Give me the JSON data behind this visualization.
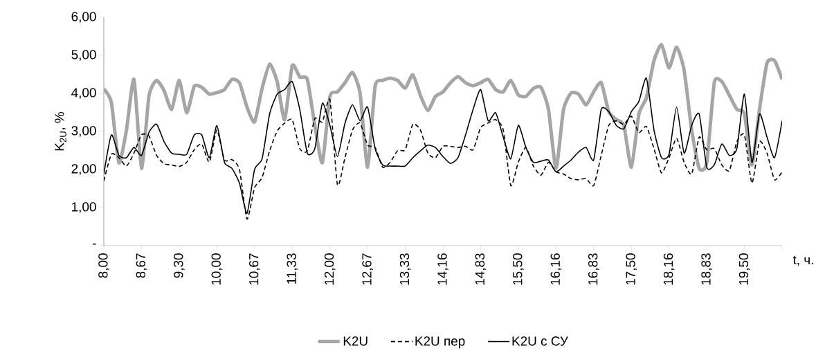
{
  "chart_data": {
    "type": "line",
    "ylabel": "K$_{2U}$, %",
    "xlabel": "t, ч.",
    "categories": [
      "8,00",
      null,
      null,
      null,
      null,
      "8,67",
      null,
      null,
      null,
      null,
      "9,30",
      null,
      null,
      null,
      null,
      "10,00",
      null,
      null,
      null,
      null,
      "10,67",
      null,
      null,
      null,
      null,
      "11,33",
      null,
      null,
      null,
      null,
      "12,00",
      null,
      null,
      null,
      null,
      "12,67",
      null,
      null,
      null,
      null,
      "13,33",
      null,
      null,
      null,
      null,
      "14,16",
      null,
      null,
      null,
      null,
      "14,83",
      null,
      null,
      null,
      null,
      "15,50",
      null,
      null,
      null,
      null,
      "16,16",
      null,
      null,
      null,
      null,
      "16,83",
      null,
      null,
      null,
      null,
      "17,50",
      null,
      null,
      null,
      null,
      "18,16",
      null,
      null,
      null,
      null,
      "18,83",
      null,
      null,
      null,
      null,
      "19,50",
      null,
      null,
      null,
      null,
      null
    ],
    "ylim": [
      0,
      6
    ],
    "yticks": [
      {
        "value": 0,
        "label": "-"
      },
      {
        "value": 1,
        "label": "1,00"
      },
      {
        "value": 2,
        "label": "2,00"
      },
      {
        "value": 3,
        "label": "3,00"
      },
      {
        "value": 4,
        "label": "4,00"
      },
      {
        "value": 5,
        "label": "5,00"
      },
      {
        "value": 6,
        "label": "6,00"
      }
    ],
    "legend": "bottom",
    "series": [
      {
        "name": "K2U",
        "color": "#a6a6a6",
        "line_style": "solid",
        "values": [
          4.12,
          3.76,
          2.18,
          3.03,
          4.37,
          2.03,
          3.95,
          4.34,
          4.07,
          3.58,
          4.34,
          3.49,
          4.19,
          4.16,
          3.98,
          4.02,
          4.1,
          4.37,
          4.28,
          3.64,
          3.25,
          4.13,
          4.77,
          4.31,
          3.31,
          4.73,
          4.43,
          4.37,
          3.16,
          2.18,
          3.92,
          4.04,
          4.28,
          4.55,
          4.01,
          2.06,
          4.19,
          4.34,
          4.4,
          4.34,
          4.14,
          4.49,
          3.95,
          3.55,
          3.92,
          4.04,
          4.28,
          4.44,
          4.28,
          4.2,
          4.28,
          4.37,
          4.1,
          4.04,
          4.34,
          3.96,
          3.92,
          4.13,
          4.16,
          3.58,
          2.03,
          3.58,
          4.01,
          3.98,
          3.7,
          4.04,
          4.28,
          3.52,
          3.31,
          3.16,
          2.06,
          3.46,
          3.89,
          4.86,
          5.28,
          4.67,
          5.22,
          4.61,
          3.04,
          2.03,
          2.18,
          4.28,
          4.31,
          3.95,
          3.58,
          3.46,
          2.12,
          3.58,
          4.8,
          4.86,
          4.37
        ]
      },
      {
        "name": "K2U пер",
        "color": "#000000",
        "line_style": "dashed",
        "values": [
          1.7,
          2.4,
          2.31,
          2.09,
          2.43,
          2.91,
          2.88,
          2.37,
          2.15,
          2.12,
          2.08,
          2.19,
          2.52,
          2.67,
          2.19,
          3.04,
          2.25,
          2.26,
          2.0,
          0.7,
          1.52,
          1.79,
          2.49,
          3.01,
          3.22,
          3.31,
          2.55,
          2.49,
          3.34,
          3.25,
          3.83,
          1.6,
          2.31,
          3.04,
          3.22,
          2.64,
          2.58,
          2.06,
          2.19,
          2.5,
          2.52,
          3.19,
          3.04,
          2.43,
          2.31,
          2.61,
          2.61,
          2.58,
          2.61,
          2.52,
          3.1,
          3.22,
          3.31,
          3.04,
          1.58,
          2.19,
          2.58,
          2.09,
          1.85,
          2.19,
          1.94,
          1.88,
          1.76,
          1.73,
          1.76,
          1.58,
          2.37,
          3.16,
          3.28,
          3.19,
          3.4,
          2.97,
          3.13,
          2.55,
          1.91,
          2.31,
          2.82,
          2.19,
          1.88,
          2.85,
          2.52,
          2.55,
          2.12,
          1.97,
          2.73,
          2.91,
          1.64,
          2.73,
          2.43,
          1.73,
          1.94
        ]
      },
      {
        "name": "K2U с СУ",
        "color": "#000000",
        "line_style": "solid",
        "values": [
          1.88,
          2.91,
          2.37,
          2.31,
          2.58,
          2.37,
          2.98,
          3.19,
          2.73,
          2.43,
          2.4,
          2.4,
          2.91,
          2.91,
          2.31,
          3.16,
          2.19,
          2.03,
          1.64,
          0.85,
          2.0,
          2.28,
          3.46,
          3.98,
          4.1,
          4.31,
          3.58,
          2.43,
          2.55,
          3.74,
          3.16,
          2.34,
          3.22,
          3.7,
          3.28,
          3.64,
          2.55,
          2.12,
          2.09,
          2.09,
          2.09,
          2.31,
          2.49,
          2.64,
          2.58,
          2.34,
          2.16,
          2.31,
          2.91,
          3.58,
          4.1,
          3.28,
          3.49,
          2.85,
          2.28,
          3.16,
          2.58,
          2.19,
          2.22,
          2.25,
          1.94,
          2.09,
          2.25,
          2.46,
          2.58,
          2.25,
          3.58,
          3.52,
          3.16,
          3.07,
          3.52,
          3.79,
          4.4,
          3.04,
          2.31,
          2.4,
          3.64,
          2.43,
          3.16,
          3.46,
          2.06,
          2.12,
          2.67,
          2.37,
          2.55,
          3.98,
          2.19,
          3.46,
          2.85,
          2.31,
          3.28
        ]
      }
    ]
  }
}
